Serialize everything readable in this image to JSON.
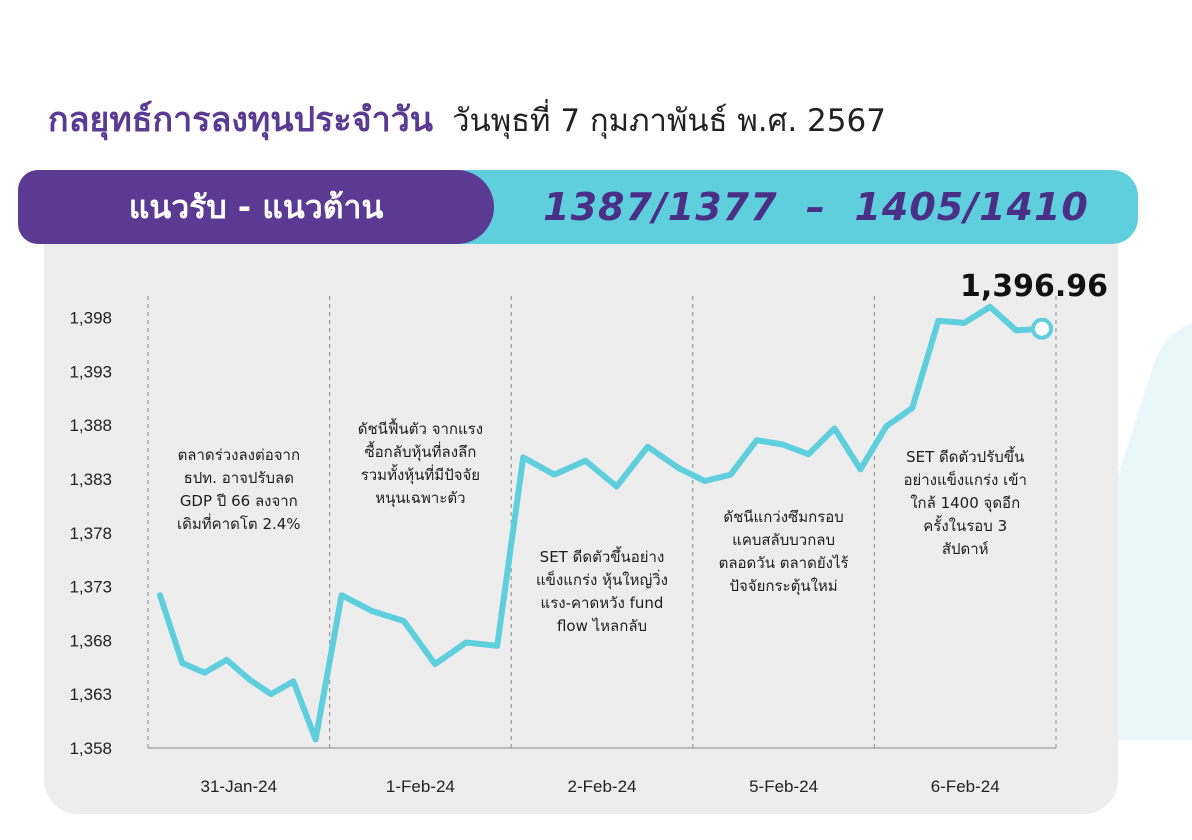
{
  "header": {
    "title": "กลยุทธ์การลงทุนประจำวัน",
    "date": "วันพุธที่ 7 กุมภาพันธ์ พ.ศ. 2567"
  },
  "banner": {
    "label": "แนวรับ - แนวต้าน",
    "levels": "1387/1377  –  1405/1410"
  },
  "colors": {
    "purple": "#5a3a92",
    "cyan": "#5fcfde",
    "panel": "#ededed"
  },
  "chart_data": {
    "type": "line",
    "last_value_label": "1,396.96",
    "ylim": [
      1358,
      1400
    ],
    "y_ticks": [
      "1,358",
      "1,363",
      "1,368",
      "1,373",
      "1,378",
      "1,383",
      "1,388",
      "1,393",
      "1,398"
    ],
    "y_tick_values": [
      1358,
      1363,
      1368,
      1373,
      1378,
      1383,
      1388,
      1393,
      1398
    ],
    "days": [
      "31-Jan-24",
      "1-Feb-24",
      "2-Feb-24",
      "5-Feb-24",
      "6-Feb-24"
    ],
    "series": [
      {
        "values": [
          [
            1372.2,
            1365.9,
            1365.0,
            1366.2,
            1364.4,
            1363.0,
            1364.2,
            1358.8
          ],
          [
            1372.2,
            1370.7,
            1369.8,
            1365.8,
            1367.8,
            1367.5
          ],
          [
            1385.0,
            1383.4,
            1384.7,
            1382.3,
            1386.0,
            1384.0
          ],
          [
            1382.8,
            1383.4,
            1386.6,
            1386.2,
            1385.3,
            1387.7,
            1383.9
          ],
          [
            1387.9,
            1389.6,
            1397.7,
            1397.5,
            1399.0,
            1396.8,
            1396.96
          ]
        ]
      }
    ],
    "annotations": [
      [
        "ตลาดร่วงลงต่อจาก",
        "ธปท. อาจปรับลด",
        "GDP ปี 66 ลงจาก",
        "เดิมที่คาดโต 2.4%"
      ],
      [
        "ดัชนีฟื้นตัว จากแรง",
        "ซื้อกลับหุ้นที่ลงลึก",
        "รวมทั้งหุ้นที่มีปัจจัย",
        "หนุนเฉพาะตัว"
      ],
      [
        "SET ดีดตัวขึ้นอย่าง",
        "แข็งแกร่ง หุ้นใหญ่วิ่ง",
        "แรง-คาดหวัง fund",
        "flow ไหลกลับ"
      ],
      [
        "ดัชนีแกว่งซึมกรอบ",
        "แคบสลับบวกลบ",
        "ตลอดวัน ตลาดยังไร้",
        "ปัจจัยกระตุ้นใหม่"
      ],
      [
        "SET ดีดตัวปรับขึ้น",
        "อย่างแข็งแกร่ง เข้า",
        "ใกล้ 1400 จุดอีก",
        "ครั้งในรอบ 3",
        "สัปดาห์"
      ]
    ],
    "line_color": "#5fcfde",
    "grid": false
  }
}
